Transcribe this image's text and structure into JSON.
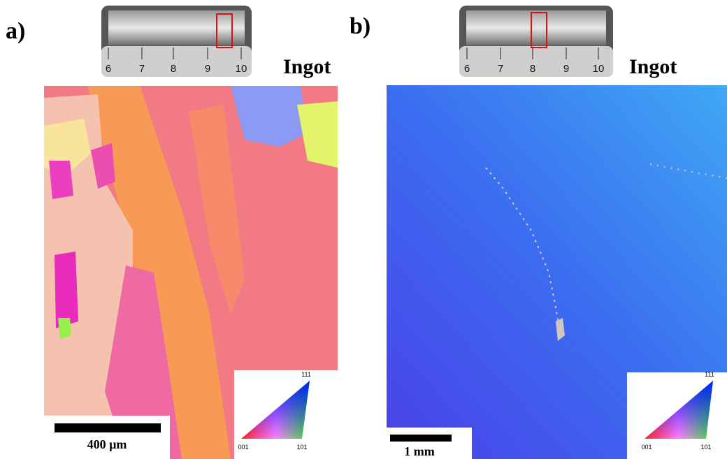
{
  "panels": [
    {
      "label": "a)",
      "sample": "Ingot",
      "ruler": [
        "6",
        "7",
        "8",
        "9",
        "10"
      ],
      "scale_bar": "400 µm",
      "ipf": [
        "001",
        "101",
        "111"
      ]
    },
    {
      "label": "b)",
      "sample": "Ingot",
      "ruler": [
        "6",
        "7",
        "8",
        "9",
        "10"
      ],
      "scale_bar": "1 mm",
      "ipf": [
        "001",
        "101",
        "111"
      ]
    }
  ]
}
